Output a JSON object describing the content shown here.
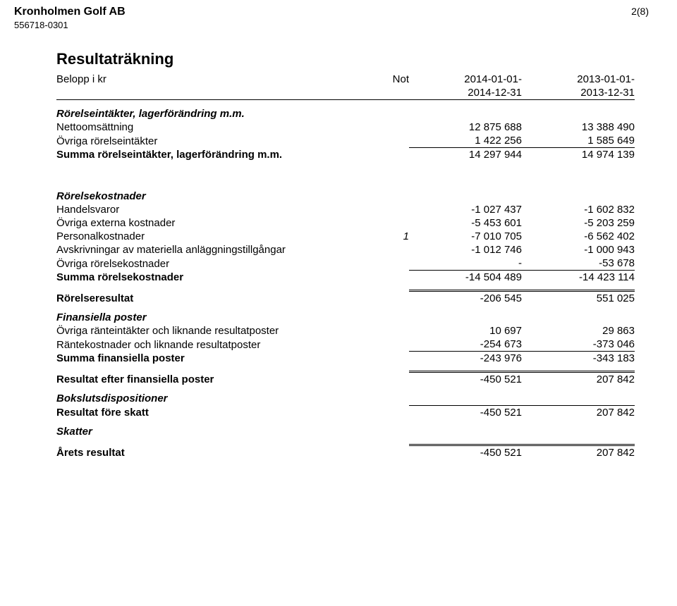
{
  "header": {
    "company": "Kronholmen Golf AB",
    "orgNo": "556718-0301",
    "pageNo": "2(8)"
  },
  "title": "Resultaträkning",
  "columns": {
    "label": "Belopp i kr",
    "note": "Not",
    "periodA_line1": "2014-01-01-",
    "periodA_line2": "2014-12-31",
    "periodB_line1": "2013-01-01-",
    "periodB_line2": "2013-12-31"
  },
  "sections": {
    "revenues": {
      "heading": "Rörelseintäkter, lagerförändring m.m.",
      "rows": [
        {
          "label": "Nettoomsättning",
          "a": "12 875 688",
          "b": "13 388 490"
        },
        {
          "label": "Övriga rörelseintäkter",
          "a": "1 422 256",
          "b": "1 585 649"
        }
      ],
      "sum": {
        "label": "Summa rörelseintäkter, lagerförändring m.m.",
        "a": "14 297 944",
        "b": "14 974 139"
      }
    },
    "costs": {
      "heading": "Rörelsekostnader",
      "rows": [
        {
          "label": "Handelsvaror",
          "note": "",
          "a": "-1 027 437",
          "b": "-1 602 832"
        },
        {
          "label": "Övriga externa kostnader",
          "note": "",
          "a": "-5 453 601",
          "b": "-5 203 259"
        },
        {
          "label": "Personalkostnader",
          "note": "1",
          "a": "-7 010 705",
          "b": "-6 562 402"
        },
        {
          "label": "Avskrivningar av materiella anläggningstillgångar",
          "note": "",
          "a": "-1 012 746",
          "b": "-1 000 943"
        },
        {
          "label": "Övriga rörelsekostnader",
          "note": "",
          "a": "-",
          "b": "-53 678"
        }
      ],
      "sum": {
        "label": "Summa rörelsekostnader",
        "a": "-14 504 489",
        "b": "-14 423 114"
      }
    },
    "operating": {
      "label": "Rörelseresultat",
      "a": "-206 545",
      "b": "551 025"
    },
    "financial": {
      "heading": "Finansiella poster",
      "rows": [
        {
          "label": "Övriga ränteintäkter och liknande resultatposter",
          "a": "10 697",
          "b": "29 863"
        },
        {
          "label": "Räntekostnader och liknande resultatposter",
          "a": "-254 673",
          "b": "-373 046"
        }
      ],
      "sum": {
        "label": "Summa finansiella poster",
        "a": "-243 976",
        "b": "-343 183"
      }
    },
    "afterFin": {
      "label": "Resultat efter finansiella poster",
      "a": "-450 521",
      "b": "207 842"
    },
    "dispositions": {
      "heading": "Bokslutsdispositioner"
    },
    "beforeTax": {
      "label": "Resultat före skatt",
      "a": "-450 521",
      "b": "207 842"
    },
    "taxes": {
      "heading": "Skatter"
    },
    "yearResult": {
      "label": "Årets resultat",
      "a": "-450 521",
      "b": "207 842"
    }
  }
}
